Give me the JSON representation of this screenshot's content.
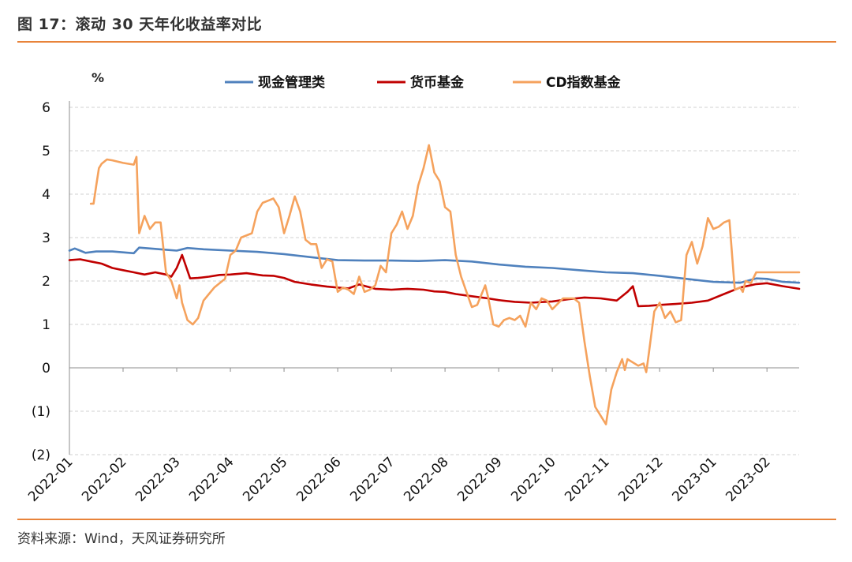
{
  "figure": {
    "title": "图 17：滚动 30 天年化收益率对比",
    "source": "资料来源：Wind，天风证券研究所"
  },
  "chart_data": {
    "type": "line",
    "title": "滚动 30 天年化收益率对比",
    "ylabel": "%",
    "ylim": [
      -2,
      6
    ],
    "y_ticks": [
      6,
      5,
      4,
      3,
      2,
      1,
      0,
      -1,
      -2
    ],
    "y_tick_labels": [
      "6",
      "5",
      "4",
      "3",
      "2",
      "1",
      "0",
      "(1)",
      "(2)"
    ],
    "x_labels": [
      "2022-01",
      "2022-02",
      "2022-03",
      "2022-04",
      "2022-05",
      "2022-06",
      "2022-07",
      "2022-08",
      "2022-09",
      "2022-10",
      "2022-11",
      "2022-12",
      "2023-01",
      "2023-02"
    ],
    "x_range": [
      0,
      13.6
    ],
    "legend_position": "top",
    "series": [
      {
        "name": "现金管理类",
        "color": "#4f81bd",
        "x": [
          0.0,
          0.1,
          0.2,
          0.3,
          0.5,
          0.8,
          1.0,
          1.2,
          1.3,
          1.6,
          1.8,
          2.0,
          2.2,
          2.5,
          3.0,
          3.5,
          4.0,
          4.5,
          5.0,
          5.5,
          6.0,
          6.5,
          7.0,
          7.5,
          8.0,
          8.5,
          9.0,
          9.5,
          10.0,
          10.5,
          11.0,
          11.5,
          12.0,
          12.2,
          12.5,
          12.8,
          13.0,
          13.3,
          13.6
        ],
        "values": [
          2.7,
          2.75,
          2.7,
          2.65,
          2.68,
          2.68,
          2.66,
          2.64,
          2.77,
          2.74,
          2.72,
          2.7,
          2.76,
          2.73,
          2.7,
          2.67,
          2.62,
          2.55,
          2.48,
          2.47,
          2.47,
          2.46,
          2.48,
          2.45,
          2.38,
          2.33,
          2.3,
          2.25,
          2.2,
          2.18,
          2.12,
          2.05,
          1.98,
          1.97,
          1.96,
          2.06,
          2.05,
          1.98,
          1.96
        ]
      },
      {
        "name": "货币基金",
        "color": "#c00000",
        "x": [
          0.0,
          0.2,
          0.4,
          0.6,
          0.8,
          1.0,
          1.2,
          1.4,
          1.6,
          1.8,
          1.9,
          2.0,
          2.1,
          2.25,
          2.4,
          2.6,
          2.8,
          3.0,
          3.3,
          3.6,
          3.8,
          4.0,
          4.2,
          4.5,
          4.8,
          5.0,
          5.2,
          5.4,
          5.7,
          6.0,
          6.3,
          6.6,
          6.8,
          7.0,
          7.2,
          7.5,
          7.8,
          8.0,
          8.3,
          8.6,
          9.0,
          9.3,
          9.6,
          9.9,
          10.2,
          10.4,
          10.5,
          10.6,
          10.8,
          11.0,
          11.3,
          11.6,
          11.9,
          12.2,
          12.5,
          12.8,
          13.0,
          13.3,
          13.6
        ],
        "values": [
          2.48,
          2.5,
          2.45,
          2.4,
          2.3,
          2.25,
          2.2,
          2.15,
          2.2,
          2.15,
          2.1,
          2.3,
          2.6,
          2.06,
          2.07,
          2.1,
          2.14,
          2.15,
          2.18,
          2.13,
          2.12,
          2.07,
          1.98,
          1.92,
          1.87,
          1.85,
          1.83,
          1.92,
          1.82,
          1.8,
          1.82,
          1.8,
          1.76,
          1.75,
          1.7,
          1.65,
          1.6,
          1.56,
          1.52,
          1.5,
          1.53,
          1.58,
          1.62,
          1.6,
          1.55,
          1.75,
          1.88,
          1.42,
          1.43,
          1.45,
          1.47,
          1.5,
          1.55,
          1.7,
          1.85,
          1.93,
          1.95,
          1.88,
          1.82
        ]
      },
      {
        "name": "CD指数基金",
        "color": "#f5a25d",
        "x": [
          0.4,
          0.45,
          0.5,
          0.55,
          0.6,
          0.7,
          0.8,
          1.0,
          1.2,
          1.25,
          1.3,
          1.4,
          1.5,
          1.6,
          1.7,
          1.8,
          1.9,
          2.0,
          2.05,
          2.1,
          2.2,
          2.3,
          2.4,
          2.5,
          2.6,
          2.7,
          2.8,
          2.9,
          3.0,
          3.1,
          3.2,
          3.4,
          3.5,
          3.6,
          3.7,
          3.8,
          3.9,
          4.0,
          4.1,
          4.2,
          4.3,
          4.4,
          4.5,
          4.6,
          4.7,
          4.8,
          4.9,
          5.0,
          5.1,
          5.2,
          5.3,
          5.4,
          5.5,
          5.6,
          5.7,
          5.8,
          5.9,
          6.0,
          6.1,
          6.2,
          6.3,
          6.4,
          6.5,
          6.6,
          6.7,
          6.8,
          6.9,
          7.0,
          7.1,
          7.2,
          7.3,
          7.4,
          7.5,
          7.6,
          7.7,
          7.75,
          7.8,
          7.9,
          8.0,
          8.1,
          8.2,
          8.3,
          8.4,
          8.5,
          8.6,
          8.7,
          8.8,
          8.9,
          9.0,
          9.2,
          9.4,
          9.5,
          9.6,
          9.7,
          9.8,
          10.0,
          10.1,
          10.2,
          10.3,
          10.35,
          10.4,
          10.6,
          10.7,
          10.75,
          10.8,
          10.9,
          11.0,
          11.1,
          11.2,
          11.3,
          11.4,
          11.5,
          11.6,
          11.7,
          11.8,
          11.9,
          12.0,
          12.1,
          12.2,
          12.3,
          12.4,
          12.5,
          12.55,
          12.6,
          12.7,
          12.8,
          12.9,
          13.0,
          13.1,
          13.2,
          13.3,
          13.4,
          13.5,
          13.6
        ],
        "values": [
          3.78,
          3.78,
          4.2,
          4.6,
          4.7,
          4.8,
          4.78,
          4.72,
          4.68,
          4.86,
          3.1,
          3.5,
          3.2,
          3.35,
          3.35,
          2.2,
          2.0,
          1.6,
          1.9,
          1.5,
          1.1,
          1.0,
          1.15,
          1.55,
          1.7,
          1.85,
          1.95,
          2.05,
          2.6,
          2.7,
          3.0,
          3.1,
          3.6,
          3.8,
          3.85,
          3.9,
          3.7,
          3.1,
          3.5,
          3.95,
          3.6,
          2.95,
          2.85,
          2.85,
          2.3,
          2.5,
          2.45,
          1.75,
          1.85,
          1.8,
          1.7,
          2.1,
          1.75,
          1.8,
          1.9,
          2.35,
          2.2,
          3.1,
          3.3,
          3.6,
          3.2,
          3.5,
          4.2,
          4.6,
          5.13,
          4.5,
          4.3,
          3.7,
          3.6,
          2.6,
          2.1,
          1.75,
          1.4,
          1.45,
          1.75,
          1.9,
          1.65,
          1.0,
          0.95,
          1.1,
          1.15,
          1.1,
          1.2,
          0.95,
          1.5,
          1.35,
          1.6,
          1.55,
          1.35,
          1.6,
          1.6,
          1.5,
          0.6,
          -0.2,
          -0.9,
          -1.3,
          -0.5,
          -0.1,
          0.2,
          -0.05,
          0.2,
          0.05,
          0.1,
          -0.1,
          0.35,
          1.3,
          1.5,
          1.15,
          1.3,
          1.05,
          1.1,
          2.6,
          2.9,
          2.4,
          2.8,
          3.45,
          3.2,
          3.25,
          3.35,
          3.4,
          1.8,
          1.85,
          1.75,
          2.0,
          1.95,
          2.2,
          2.2,
          2.2,
          2.2,
          2.2,
          2.2,
          2.2,
          2.2,
          2.2
        ]
      }
    ]
  }
}
